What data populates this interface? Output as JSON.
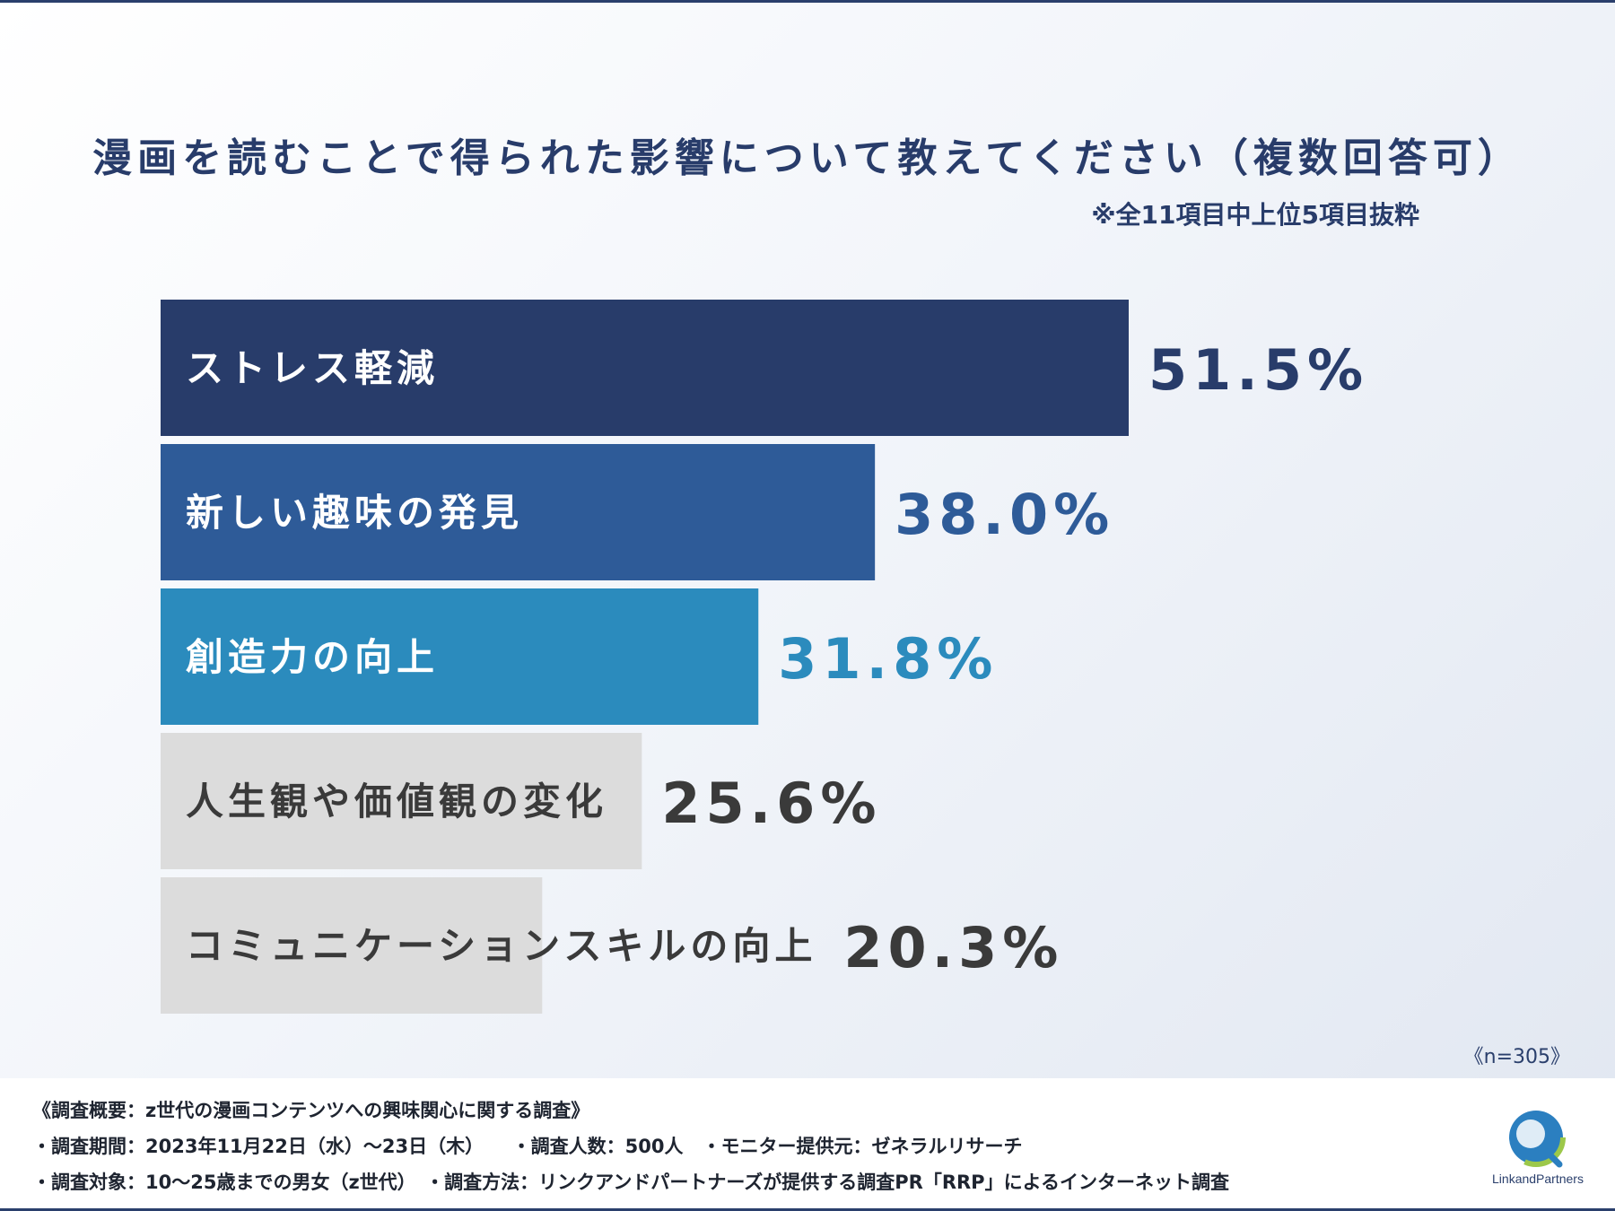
{
  "title": "漫画を読むことで得られた影響について教えてください（複数回答可）",
  "subnote": "※全11項目中上位5項目抜粋",
  "sample_size": "《n=305》",
  "chart_data": {
    "type": "bar",
    "orientation": "horizontal",
    "categories": [
      "ストレス軽減",
      "新しい趣味の発見",
      "創造力の向上",
      "人生観や価値観の変化",
      "コミュニケーションスキルの向上"
    ],
    "values": [
      51.5,
      38.0,
      31.8,
      25.6,
      20.3
    ],
    "value_labels": [
      "51.5%",
      "38.0%",
      "31.8%",
      "25.6%",
      "20.3%"
    ],
    "unit": "%",
    "bar_colors": [
      "#283c6a",
      "#2e5b98",
      "#2b8bbd",
      "#dcdcdc",
      "#dcdcdc"
    ],
    "label_colors": [
      "#ffffff",
      "#ffffff",
      "#ffffff",
      "#3a3a3a",
      "#3a3a3a"
    ],
    "value_colors": [
      "#283c6a",
      "#2e5b98",
      "#2b8bbd",
      "#3a3a3a",
      "#3a3a3a"
    ],
    "xlim": [
      0,
      51.5
    ],
    "title": "漫画を読むことで得られた影響について教えてください（複数回答可）"
  },
  "footer": {
    "lines": [
      "《調査概要：z世代の漫画コンテンツへの興味関心に関する調査》",
      "・調査期間：2023年11月22日（水）〜23日（木）　　・調査人数：500人　・モニター提供元：ゼネラルリサーチ",
      "・調査対象：10〜25歳までの男女（z世代）　・調査方法：リンクアンドパートナーズが提供する調査PR「RRP」によるインターネット調査"
    ]
  },
  "logo": {
    "text": "LinkandPartners",
    "icon": "link-and-partners-logo-icon"
  }
}
